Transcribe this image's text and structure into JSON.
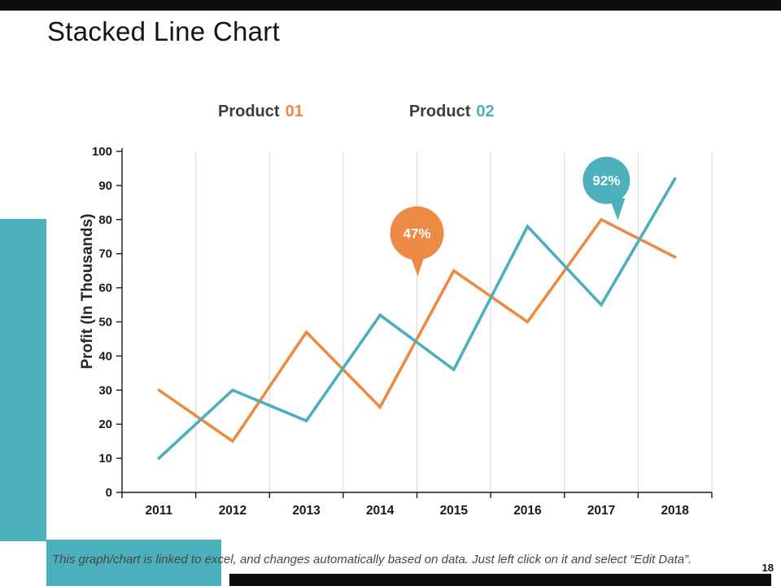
{
  "slide": {
    "title": "Stacked Line Chart",
    "page_number": "18",
    "footnote": "This graph/chart is linked to excel, and changes automatically based on data. Just left click on it and select “Edit Data”."
  },
  "legend": {
    "items": [
      {
        "label": "Product",
        "number": "01",
        "color": "#ED8B45"
      },
      {
        "label": "Product",
        "number": "02",
        "color": "#4BAFBC"
      }
    ]
  },
  "chart_data": {
    "type": "line",
    "title": "",
    "categories": [
      "2011",
      "2012",
      "2013",
      "2014",
      "2015",
      "2016",
      "2017",
      "2018"
    ],
    "series": [
      {
        "name": "Product 01",
        "color": "#ED8B45",
        "values": [
          30,
          15,
          47,
          25,
          65,
          50,
          80,
          69
        ]
      },
      {
        "name": "Product 02",
        "color": "#4BAFBC",
        "values": [
          10,
          30,
          21,
          52,
          36,
          78,
          55,
          92
        ]
      }
    ],
    "xlabel": "",
    "ylabel": "Profit (In Thousands)",
    "ylim": [
      0,
      100
    ],
    "ytick_step": 10,
    "grid": "vertical",
    "legend_position": "top",
    "annotations": [
      {
        "text": "47%",
        "series": "Product 01",
        "color": "#ED8B45",
        "x": 3.5,
        "y": 76
      },
      {
        "text": "92%",
        "series": "Product 02",
        "color": "#4BAFBC",
        "x": 6.07,
        "y": 91.5
      }
    ]
  },
  "colors": {
    "accent_teal": "#4BAFBC",
    "accent_orange": "#ED8B45",
    "top_bar": "#0D0D0D",
    "gridline": "#D9D9D9"
  }
}
